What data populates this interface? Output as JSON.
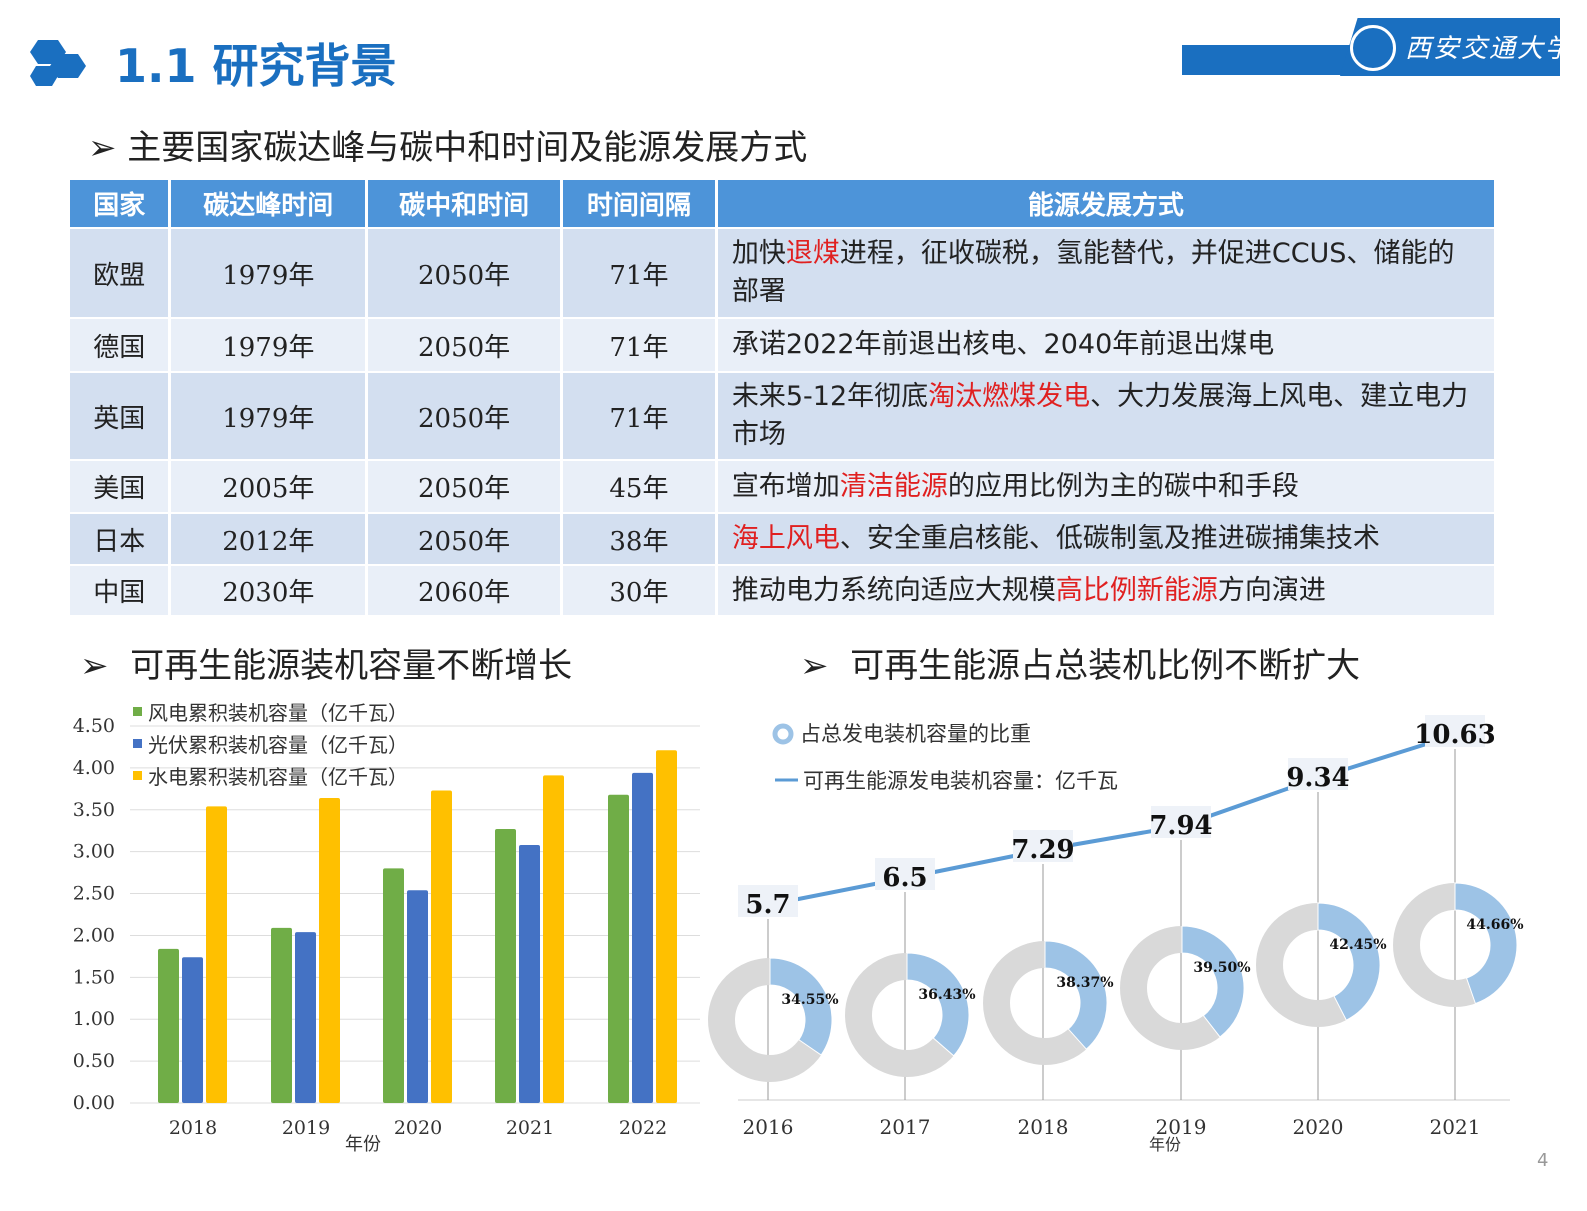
{
  "header": {
    "title": "1.1 研究背景",
    "logo_text": "西安交通大学"
  },
  "section_table": {
    "heading": "主要国家碳达峰与碳中和时间及能源发展方式",
    "columns": [
      "国家",
      "碳达峰时间",
      "碳中和时间",
      "时间间隔",
      "能源发展方式"
    ],
    "rows": [
      {
        "country": "欧盟",
        "peak": "1979年",
        "neutral": "2050年",
        "gap": "71年",
        "energy": [
          {
            "t": "加快",
            "hl": false
          },
          {
            "t": "退煤",
            "hl": true
          },
          {
            "t": "进程，征收碳税，氢能替代，并促进CCUS、储能的部署",
            "hl": false
          }
        ]
      },
      {
        "country": "德国",
        "peak": "1979年",
        "neutral": "2050年",
        "gap": "71年",
        "energy": [
          {
            "t": "承诺2022年前退出核电、2040年前退出煤电",
            "hl": false
          }
        ]
      },
      {
        "country": "英国",
        "peak": "1979年",
        "neutral": "2050年",
        "gap": "71年",
        "energy": [
          {
            "t": "未来5-12年彻底",
            "hl": false
          },
          {
            "t": "淘汰燃煤发电",
            "hl": true
          },
          {
            "t": "、大力发展海上风电、建立电力市场",
            "hl": false
          }
        ]
      },
      {
        "country": "美国",
        "peak": "2005年",
        "neutral": "2050年",
        "gap": "45年",
        "energy": [
          {
            "t": "宣布增加",
            "hl": false
          },
          {
            "t": "清洁能源",
            "hl": true
          },
          {
            "t": "的应用比例为主的碳中和手段",
            "hl": false
          }
        ]
      },
      {
        "country": "日本",
        "peak": "2012年",
        "neutral": "2050年",
        "gap": "38年",
        "energy": [
          {
            "t": "海上风电",
            "hl": true
          },
          {
            "t": "、安全重启核能、低碳制氢及推进碳捕集技术",
            "hl": false
          }
        ]
      },
      {
        "country": "中国",
        "peak": "2030年",
        "neutral": "2060年",
        "gap": "30年",
        "energy": [
          {
            "t": "推动电力系统向适应大规模",
            "hl": false
          },
          {
            "t": "高比例新能源",
            "hl": true
          },
          {
            "t": "方向演进",
            "hl": false
          }
        ]
      }
    ]
  },
  "section_left": {
    "heading": "可再生能源装机容量不断增长"
  },
  "section_right": {
    "heading": "可再生能源占总装机比例不断扩大"
  },
  "page_number": "4",
  "colors": {
    "brand": "#1a6fc0",
    "highlight": "#e02020",
    "wind": "#70ad47",
    "solar": "#4472c4",
    "hydro": "#ffc000",
    "share": "#9dc3e6",
    "rest": "#d9d9d9"
  },
  "chart_data": [
    {
      "type": "bar",
      "categories": [
        "2018",
        "2019",
        "2020",
        "2021",
        "2022"
      ],
      "xlabel": "年份",
      "ylabel": "",
      "ylim": [
        0,
        4.5
      ],
      "yticks": [
        "0.00",
        "0.50",
        "1.00",
        "1.50",
        "2.00",
        "2.50",
        "3.00",
        "3.50",
        "4.00",
        "4.50"
      ],
      "grid": true,
      "legend": "top-left",
      "series": [
        {
          "name": "风电累积装机容量（亿千瓦）",
          "values": [
            1.84,
            2.09,
            2.8,
            3.27,
            3.68
          ]
        },
        {
          "name": "光伏累积装机容量（亿千瓦）",
          "values": [
            1.74,
            2.04,
            2.54,
            3.08,
            3.94
          ]
        },
        {
          "name": "水电累积装机容量（亿千瓦）",
          "values": [
            3.54,
            3.64,
            3.73,
            3.91,
            4.21
          ]
        }
      ]
    },
    {
      "type": "line",
      "categories": [
        "2016",
        "2017",
        "2018",
        "2019",
        "2020",
        "2021"
      ],
      "xlabel": "年份",
      "legend": "top-left",
      "series": [
        {
          "name": "可再生能源发电装机容量：亿千瓦",
          "values": [
            5.7,
            6.5,
            7.29,
            7.94,
            9.34,
            10.63
          ],
          "labels": [
            "5.7",
            "6.5",
            "7.29",
            "7.94",
            "9.34",
            "10.63"
          ]
        },
        {
          "name": "占总发电装机容量的比重",
          "type": "pie",
          "values": [
            34.55,
            36.43,
            38.37,
            39.5,
            42.45,
            44.66
          ],
          "labels": [
            "34.55%",
            "36.43%",
            "38.37%",
            "39.50%",
            "42.45%",
            "44.66%"
          ]
        }
      ]
    }
  ]
}
